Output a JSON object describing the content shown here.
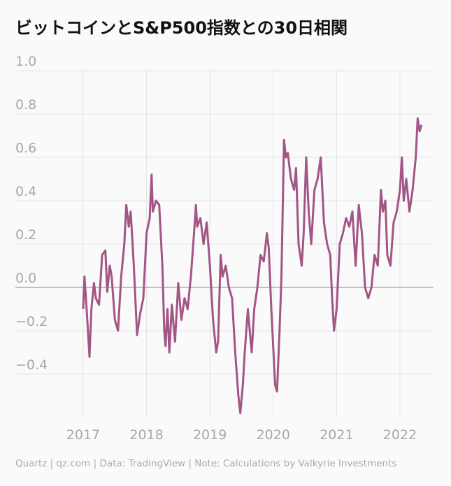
{
  "chart_data": {
    "type": "line",
    "title": "ビットコインとS&P500指数との30日相関",
    "source": "Quartz | qz.com | Data: TradingView | Note: Calculations by Valkyrie Investments",
    "color": "#a35585",
    "xlim": [
      2015.93,
      2022.53
    ],
    "xticks": [
      2017,
      2018,
      2019,
      2020,
      2021,
      2022
    ],
    "ylim": [
      -0.6,
      1.0
    ],
    "yticks": [
      {
        "value": 1.0,
        "label": "1.0"
      },
      0.8,
      0.6,
      0.4,
      0.2,
      {
        "value": 0.0,
        "label": "0.0"
      },
      {
        "value": -0.2,
        "label": "−0.2"
      },
      {
        "value": -0.4,
        "label": "−0.4"
      }
    ],
    "grid": true,
    "x": [
      2017.0,
      2017.02,
      2017.05,
      2017.1,
      2017.13,
      2017.17,
      2017.2,
      2017.25,
      2017.3,
      2017.35,
      2017.38,
      2017.42,
      2017.45,
      2017.5,
      2017.55,
      2017.6,
      2017.65,
      2017.68,
      2017.72,
      2017.75,
      2017.8,
      2017.85,
      2017.9,
      2017.95,
      2018.0,
      2018.05,
      2018.08,
      2018.1,
      2018.15,
      2018.2,
      2018.25,
      2018.28,
      2018.3,
      2018.33,
      2018.36,
      2018.4,
      2018.45,
      2018.5,
      2018.55,
      2018.6,
      2018.65,
      2018.7,
      2018.75,
      2018.78,
      2018.8,
      2018.85,
      2018.9,
      2018.95,
      2019.0,
      2019.05,
      2019.1,
      2019.13,
      2019.17,
      2019.2,
      2019.25,
      2019.3,
      2019.35,
      2019.4,
      2019.45,
      2019.48,
      2019.52,
      2019.55,
      2019.6,
      2019.63,
      2019.66,
      2019.7,
      2019.75,
      2019.8,
      2019.85,
      2019.9,
      2019.93,
      2019.97,
      2020.03,
      2020.06,
      2020.1,
      2020.13,
      2020.17,
      2020.2,
      2020.23,
      2020.28,
      2020.33,
      2020.36,
      2020.4,
      2020.45,
      2020.48,
      2020.52,
      2020.56,
      2020.6,
      2020.65,
      2020.7,
      2020.75,
      2020.8,
      2020.85,
      2020.9,
      2020.93,
      2020.96,
      2021.0,
      2021.05,
      2021.1,
      2021.15,
      2021.2,
      2021.25,
      2021.3,
      2021.35,
      2021.4,
      2021.45,
      2021.5,
      2021.55,
      2021.6,
      2021.65,
      2021.7,
      2021.73,
      2021.77,
      2021.8,
      2021.85,
      2021.9,
      2021.95,
      2022.0,
      2022.03,
      2022.06,
      2022.1,
      2022.15,
      2022.2,
      2022.25,
      2022.28,
      2022.31,
      2022.34
    ],
    "values": [
      -0.1,
      0.05,
      -0.08,
      -0.32,
      -0.1,
      0.02,
      -0.05,
      -0.08,
      0.15,
      0.17,
      -0.02,
      0.1,
      0.05,
      -0.15,
      -0.2,
      0.05,
      0.2,
      0.38,
      0.28,
      0.35,
      0.1,
      -0.22,
      -0.12,
      -0.05,
      0.25,
      0.32,
      0.52,
      0.35,
      0.4,
      0.38,
      0.1,
      -0.2,
      -0.27,
      -0.1,
      -0.3,
      -0.08,
      -0.25,
      0.02,
      -0.15,
      -0.05,
      -0.1,
      0.05,
      0.25,
      0.38,
      0.28,
      0.32,
      0.2,
      0.3,
      0.1,
      -0.15,
      -0.3,
      -0.25,
      0.15,
      0.05,
      0.1,
      0.0,
      -0.05,
      -0.3,
      -0.5,
      -0.58,
      -0.45,
      -0.3,
      -0.1,
      -0.2,
      -0.3,
      -0.1,
      0.0,
      0.15,
      0.12,
      0.25,
      0.18,
      -0.1,
      -0.45,
      -0.48,
      -0.2,
      0.05,
      0.68,
      0.6,
      0.62,
      0.5,
      0.45,
      0.55,
      0.2,
      0.1,
      0.25,
      0.6,
      0.35,
      0.2,
      0.45,
      0.5,
      0.6,
      0.3,
      0.2,
      0.15,
      -0.05,
      -0.2,
      -0.1,
      0.2,
      0.25,
      0.32,
      0.28,
      0.35,
      0.1,
      0.38,
      0.25,
      0.0,
      -0.05,
      0.0,
      0.15,
      0.1,
      0.45,
      0.35,
      0.4,
      0.15,
      0.1,
      0.3,
      0.35,
      0.45,
      0.6,
      0.4,
      0.5,
      0.35,
      0.45,
      0.6,
      0.78,
      0.72,
      0.75
    ]
  }
}
